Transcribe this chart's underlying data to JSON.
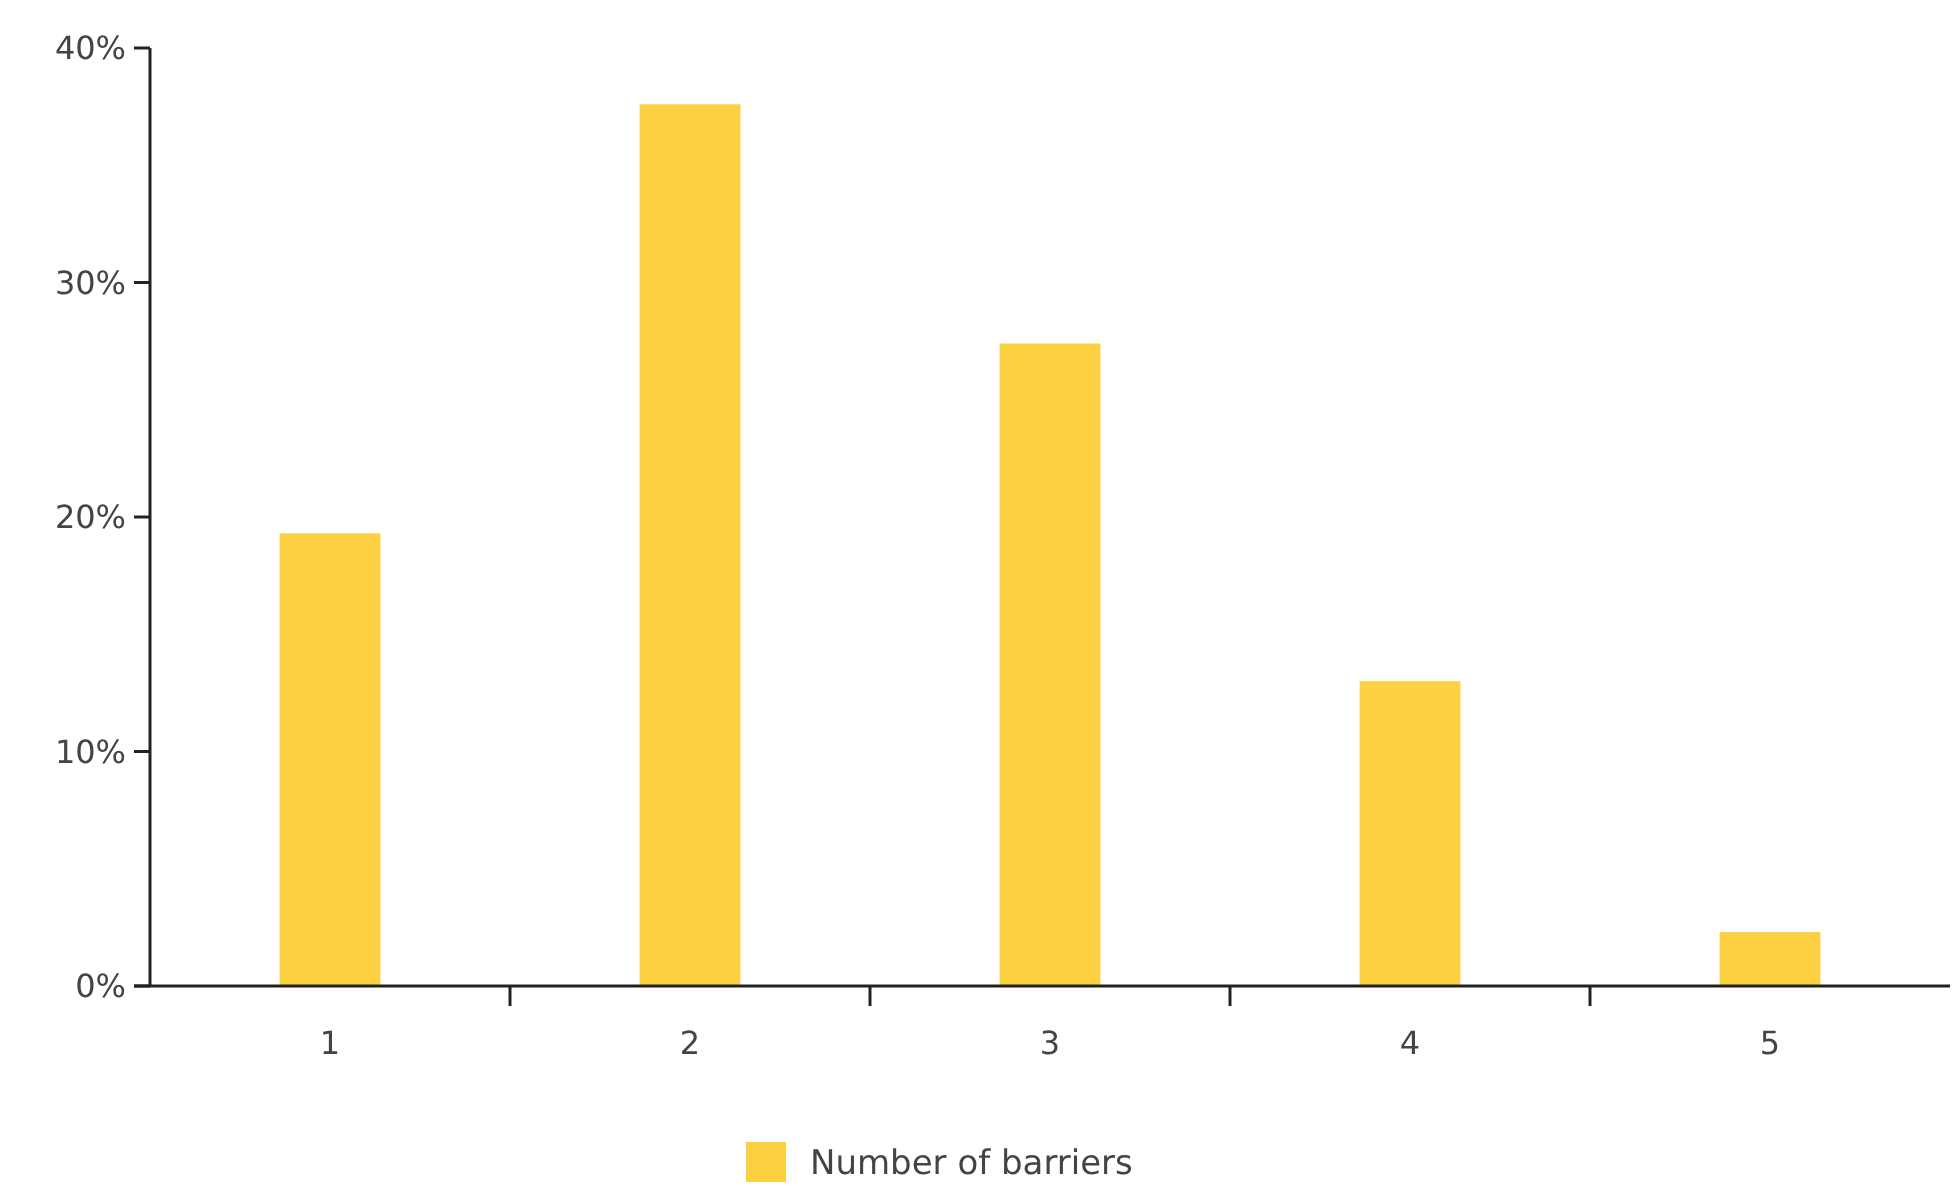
{
  "chart_data": {
    "type": "bar",
    "categories": [
      "1",
      "2",
      "3",
      "4",
      "5"
    ],
    "series": [
      {
        "name": "Number of barriers",
        "color": "#fdd041",
        "values": [
          19.3,
          37.6,
          27.4,
          13.0,
          2.3
        ]
      }
    ],
    "ylim": [
      0,
      40
    ],
    "yticks": [
      {
        "value": 0,
        "label": "0%"
      },
      {
        "value": 10,
        "label": "10%"
      },
      {
        "value": 20,
        "label": "20%"
      },
      {
        "value": 30,
        "label": "30%"
      },
      {
        "value": 40,
        "label": "40%"
      }
    ],
    "grid": false,
    "legend": "bottom"
  }
}
